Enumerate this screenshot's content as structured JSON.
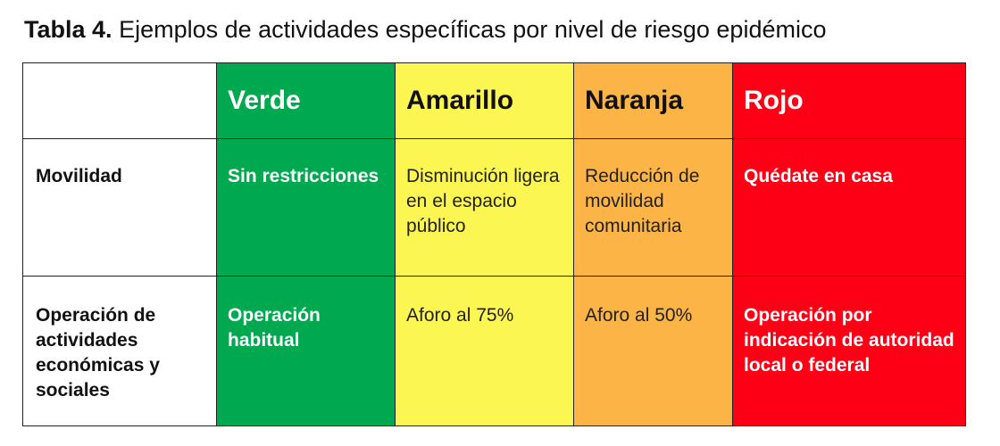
{
  "header": {
    "label": "Tabla 4.",
    "text": "Ejemplos de actividades específicas por nivel de riesgo epidémico"
  },
  "table": {
    "columns": [
      "Verde",
      "Amarillo",
      "Naranja",
      "Rojo"
    ],
    "rows": [
      {
        "label": "Movilidad",
        "cells": [
          "Sin restricciones",
          "Disminución ligera en el espacio público",
          "Reducción de movilidad comunitaria",
          "Quédate en casa"
        ]
      },
      {
        "label": "Operación de actividades económicas y sociales",
        "cells": [
          "Operación habitual",
          "Aforo al 75%",
          "Aforo al 50%",
          "Operación por indicación de autoridad local o federal"
        ]
      }
    ]
  }
}
